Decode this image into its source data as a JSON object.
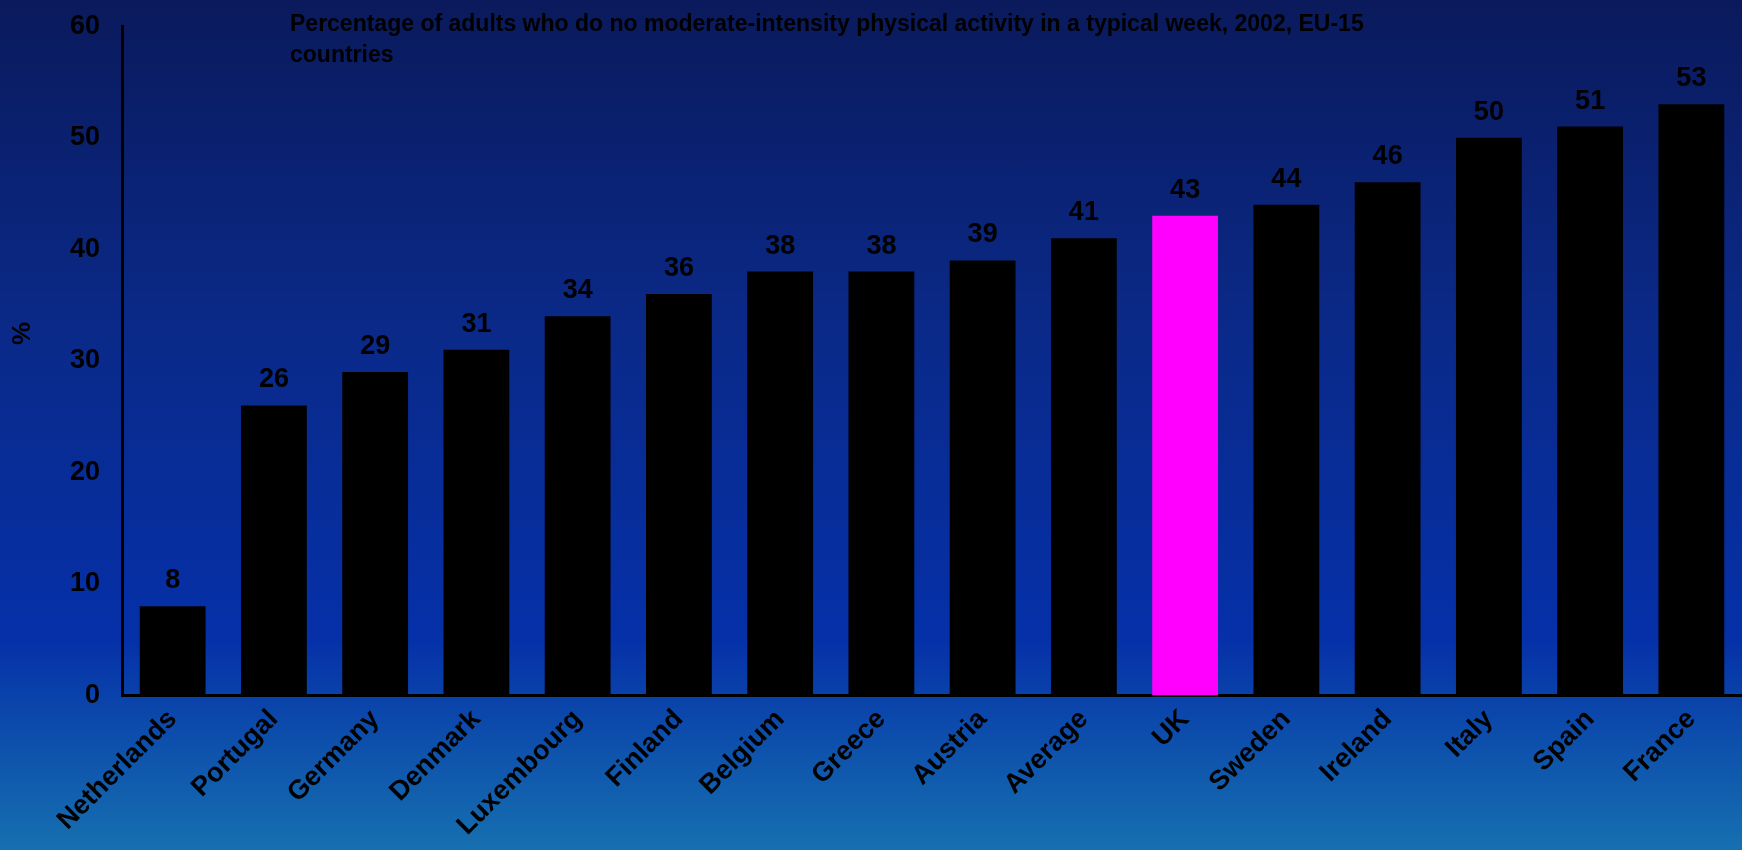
{
  "chart_data": {
    "type": "bar",
    "title": "Percentage of adults who do no moderate-intensity physical activity in a typical week, 2002, EU-15 countries",
    "ylabel": "%",
    "categories": [
      "Netherlands",
      "Portugal",
      "Germany",
      "Denmark",
      "Luxembourg",
      "Finland",
      "Belgium",
      "Greece",
      "Austria",
      "Average",
      "UK",
      "Sweden",
      "Ireland",
      "Italy",
      "Spain",
      "France"
    ],
    "values": [
      8,
      26,
      29,
      31,
      34,
      36,
      38,
      38,
      39,
      41,
      43,
      44,
      46,
      50,
      51,
      53
    ],
    "colors": [
      "#000000",
      "#000000",
      "#000000",
      "#000000",
      "#000000",
      "#000000",
      "#000000",
      "#000000",
      "#000000",
      "#000000",
      "#ff00ff",
      "#000000",
      "#000000",
      "#000000",
      "#000000",
      "#000000"
    ],
    "ylim": [
      0,
      60
    ],
    "yticks": [
      0,
      10,
      20,
      30,
      40,
      50,
      60
    ],
    "data_labels": true
  }
}
